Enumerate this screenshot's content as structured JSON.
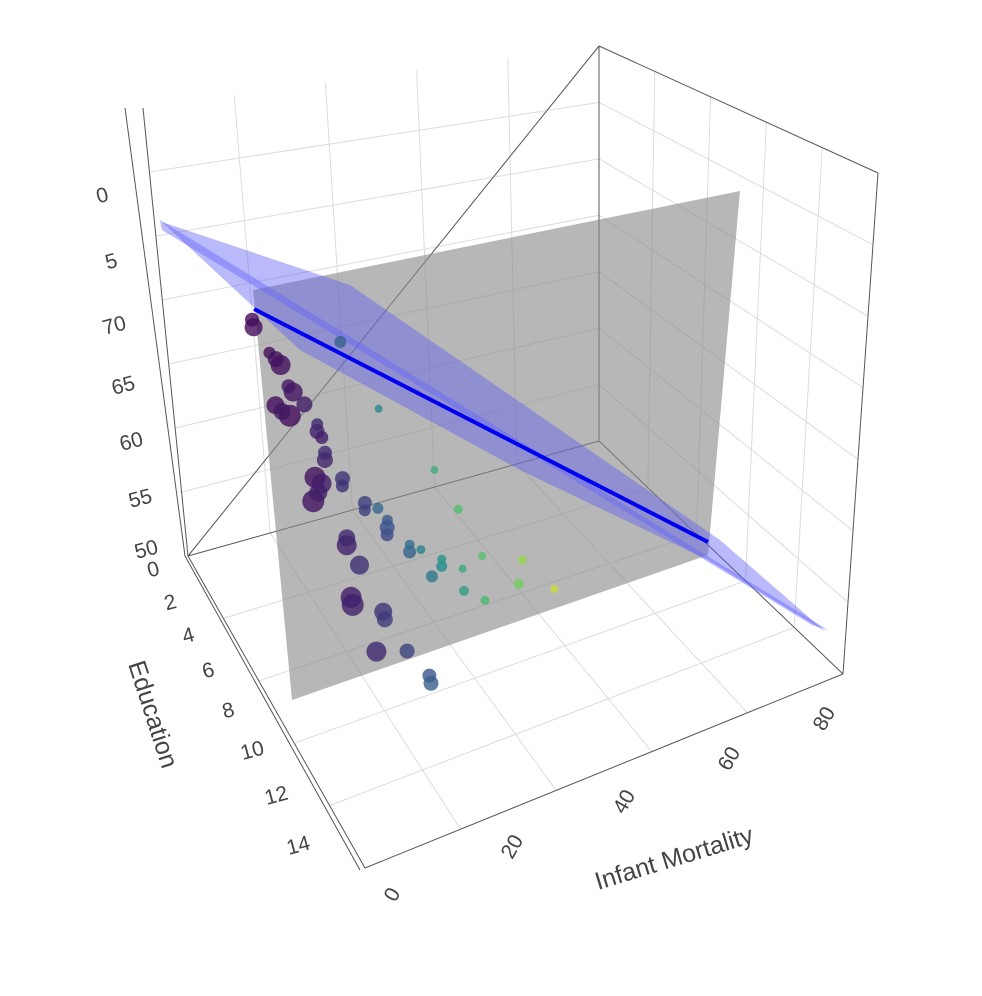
{
  "chart_data": {
    "type": "scatter3d",
    "axes": {
      "x": {
        "title": "Infant Mortality",
        "range": [
          0,
          85
        ],
        "ticks": [
          "0",
          "20",
          "40",
          "60",
          "80"
        ]
      },
      "y": {
        "title": "Education",
        "range": [
          0,
          16
        ],
        "ticks": [
          "0",
          "2",
          "4",
          "6",
          "8",
          "10",
          "12",
          "14"
        ]
      },
      "z": {
        "title": "",
        "range": [
          50,
          80
        ],
        "ticks": [
          "50",
          "55",
          "60",
          "65",
          "70",
          "5",
          "0"
        ]
      }
    },
    "grid": true,
    "colorscale": "viridis",
    "overlays": [
      {
        "kind": "plane",
        "description": "regression plane",
        "color": "#5a5af5"
      },
      {
        "kind": "plane",
        "description": "vertical slice plane",
        "color": "#808080"
      },
      {
        "kind": "line",
        "description": "regression line",
        "color": "#0000ee"
      }
    ],
    "points": [
      {
        "x": 3,
        "y": 8,
        "z": 76,
        "size": 14,
        "c": 0.02
      },
      {
        "x": 4,
        "y": 9,
        "z": 75,
        "size": 12,
        "c": 0.03
      },
      {
        "x": 5,
        "y": 7,
        "z": 74,
        "size": 18,
        "c": 0.03
      },
      {
        "x": 6,
        "y": 9,
        "z": 74,
        "size": 20,
        "c": 0.04
      },
      {
        "x": 7,
        "y": 8,
        "z": 73,
        "size": 16,
        "c": 0.05
      },
      {
        "x": 5,
        "y": 10,
        "z": 72,
        "size": 22,
        "c": 0.03
      },
      {
        "x": 8,
        "y": 9,
        "z": 72,
        "size": 19,
        "c": 0.06
      },
      {
        "x": 9,
        "y": 8,
        "z": 71,
        "size": 14,
        "c": 0.07
      },
      {
        "x": 10,
        "y": 9,
        "z": 71,
        "size": 16,
        "c": 0.08
      },
      {
        "x": 6,
        "y": 8,
        "z": 70,
        "size": 18,
        "c": 0.04
      },
      {
        "x": 11,
        "y": 10,
        "z": 70,
        "size": 13,
        "c": 0.09
      },
      {
        "x": 12,
        "y": 9,
        "z": 69,
        "size": 15,
        "c": 0.1
      },
      {
        "x": 7,
        "y": 11,
        "z": 69,
        "size": 21,
        "c": 0.05
      },
      {
        "x": 14,
        "y": 8,
        "z": 68,
        "size": 12,
        "c": 0.12
      },
      {
        "x": 9,
        "y": 7,
        "z": 68,
        "size": 17,
        "c": 0.07
      },
      {
        "x": 10,
        "y": 10,
        "z": 67,
        "size": 20,
        "c": 0.08
      },
      {
        "x": 13,
        "y": 9,
        "z": 67,
        "size": 16,
        "c": 0.11
      },
      {
        "x": 8,
        "y": 10,
        "z": 66,
        "size": 22,
        "c": 0.06
      },
      {
        "x": 15,
        "y": 8,
        "z": 66,
        "size": 14,
        "c": 0.13
      },
      {
        "x": 11,
        "y": 9,
        "z": 65,
        "size": 18,
        "c": 0.09
      },
      {
        "x": 16,
        "y": 9,
        "z": 65,
        "size": 13,
        "c": 0.14
      },
      {
        "x": 12,
        "y": 11,
        "z": 64,
        "size": 20,
        "c": 0.1
      },
      {
        "x": 18,
        "y": 8,
        "z": 64,
        "size": 15,
        "c": 0.16
      },
      {
        "x": 14,
        "y": 10,
        "z": 63,
        "size": 17,
        "c": 0.12
      },
      {
        "x": 20,
        "y": 9,
        "z": 63,
        "size": 12,
        "c": 0.18
      },
      {
        "x": 10,
        "y": 12,
        "z": 62,
        "size": 21,
        "c": 0.08
      },
      {
        "x": 22,
        "y": 8,
        "z": 62,
        "size": 14,
        "c": 0.2
      },
      {
        "x": 16,
        "y": 10,
        "z": 61,
        "size": 19,
        "c": 0.14
      },
      {
        "x": 24,
        "y": 9,
        "z": 61,
        "size": 13,
        "c": 0.22
      },
      {
        "x": 12,
        "y": 11,
        "z": 60,
        "size": 22,
        "c": 0.1
      },
      {
        "x": 26,
        "y": 8,
        "z": 60,
        "size": 15,
        "c": 0.25
      },
      {
        "x": 18,
        "y": 11,
        "z": 59,
        "size": 18,
        "c": 0.16
      },
      {
        "x": 28,
        "y": 7,
        "z": 59,
        "size": 11,
        "c": 0.28
      },
      {
        "x": 14,
        "y": 12,
        "z": 58,
        "size": 20,
        "c": 0.12
      },
      {
        "x": 30,
        "y": 8,
        "z": 58,
        "size": 13,
        "c": 0.32
      },
      {
        "x": 20,
        "y": 10,
        "z": 57,
        "size": 16,
        "c": 0.18
      },
      {
        "x": 32,
        "y": 7,
        "z": 57,
        "size": 10,
        "c": 0.36
      },
      {
        "x": 22,
        "y": 11,
        "z": 56,
        "size": 15,
        "c": 0.2
      },
      {
        "x": 34,
        "y": 8,
        "z": 56,
        "size": 12,
        "c": 0.4
      },
      {
        "x": 36,
        "y": 6,
        "z": 55,
        "size": 9,
        "c": 0.44
      },
      {
        "x": 38,
        "y": 7,
        "z": 55,
        "size": 11,
        "c": 0.48
      },
      {
        "x": 26,
        "y": 11,
        "z": 54,
        "size": 14,
        "c": 0.26
      },
      {
        "x": 40,
        "y": 6,
        "z": 54,
        "size": 9,
        "c": 0.52
      },
      {
        "x": 42,
        "y": 7,
        "z": 53,
        "size": 10,
        "c": 0.56
      },
      {
        "x": 44,
        "y": 6,
        "z": 53,
        "size": 8,
        "c": 0.6
      },
      {
        "x": 46,
        "y": 7,
        "z": 52,
        "size": 9,
        "c": 0.66
      },
      {
        "x": 50,
        "y": 5,
        "z": 52,
        "size": 8,
        "c": 0.72
      },
      {
        "x": 55,
        "y": 6,
        "z": 51,
        "size": 10,
        "c": 0.78
      },
      {
        "x": 58,
        "y": 5,
        "z": 51,
        "size": 9,
        "c": 0.84
      },
      {
        "x": 62,
        "y": 6,
        "z": 50,
        "size": 8,
        "c": 0.92
      },
      {
        "x": 48,
        "y": 4,
        "z": 54,
        "size": 9,
        "c": 0.7
      },
      {
        "x": 30,
        "y": 5,
        "z": 57,
        "size": 11,
        "c": 0.34
      },
      {
        "x": 24,
        "y": 6,
        "z": 70,
        "size": 12,
        "c": 0.3
      },
      {
        "x": 34,
        "y": 4,
        "z": 62,
        "size": 8,
        "c": 0.46
      },
      {
        "x": 28,
        "y": 10,
        "z": 52,
        "size": 15,
        "c": 0.3
      },
      {
        "x": 44,
        "y": 4,
        "z": 57,
        "size": 8,
        "c": 0.62
      }
    ]
  }
}
